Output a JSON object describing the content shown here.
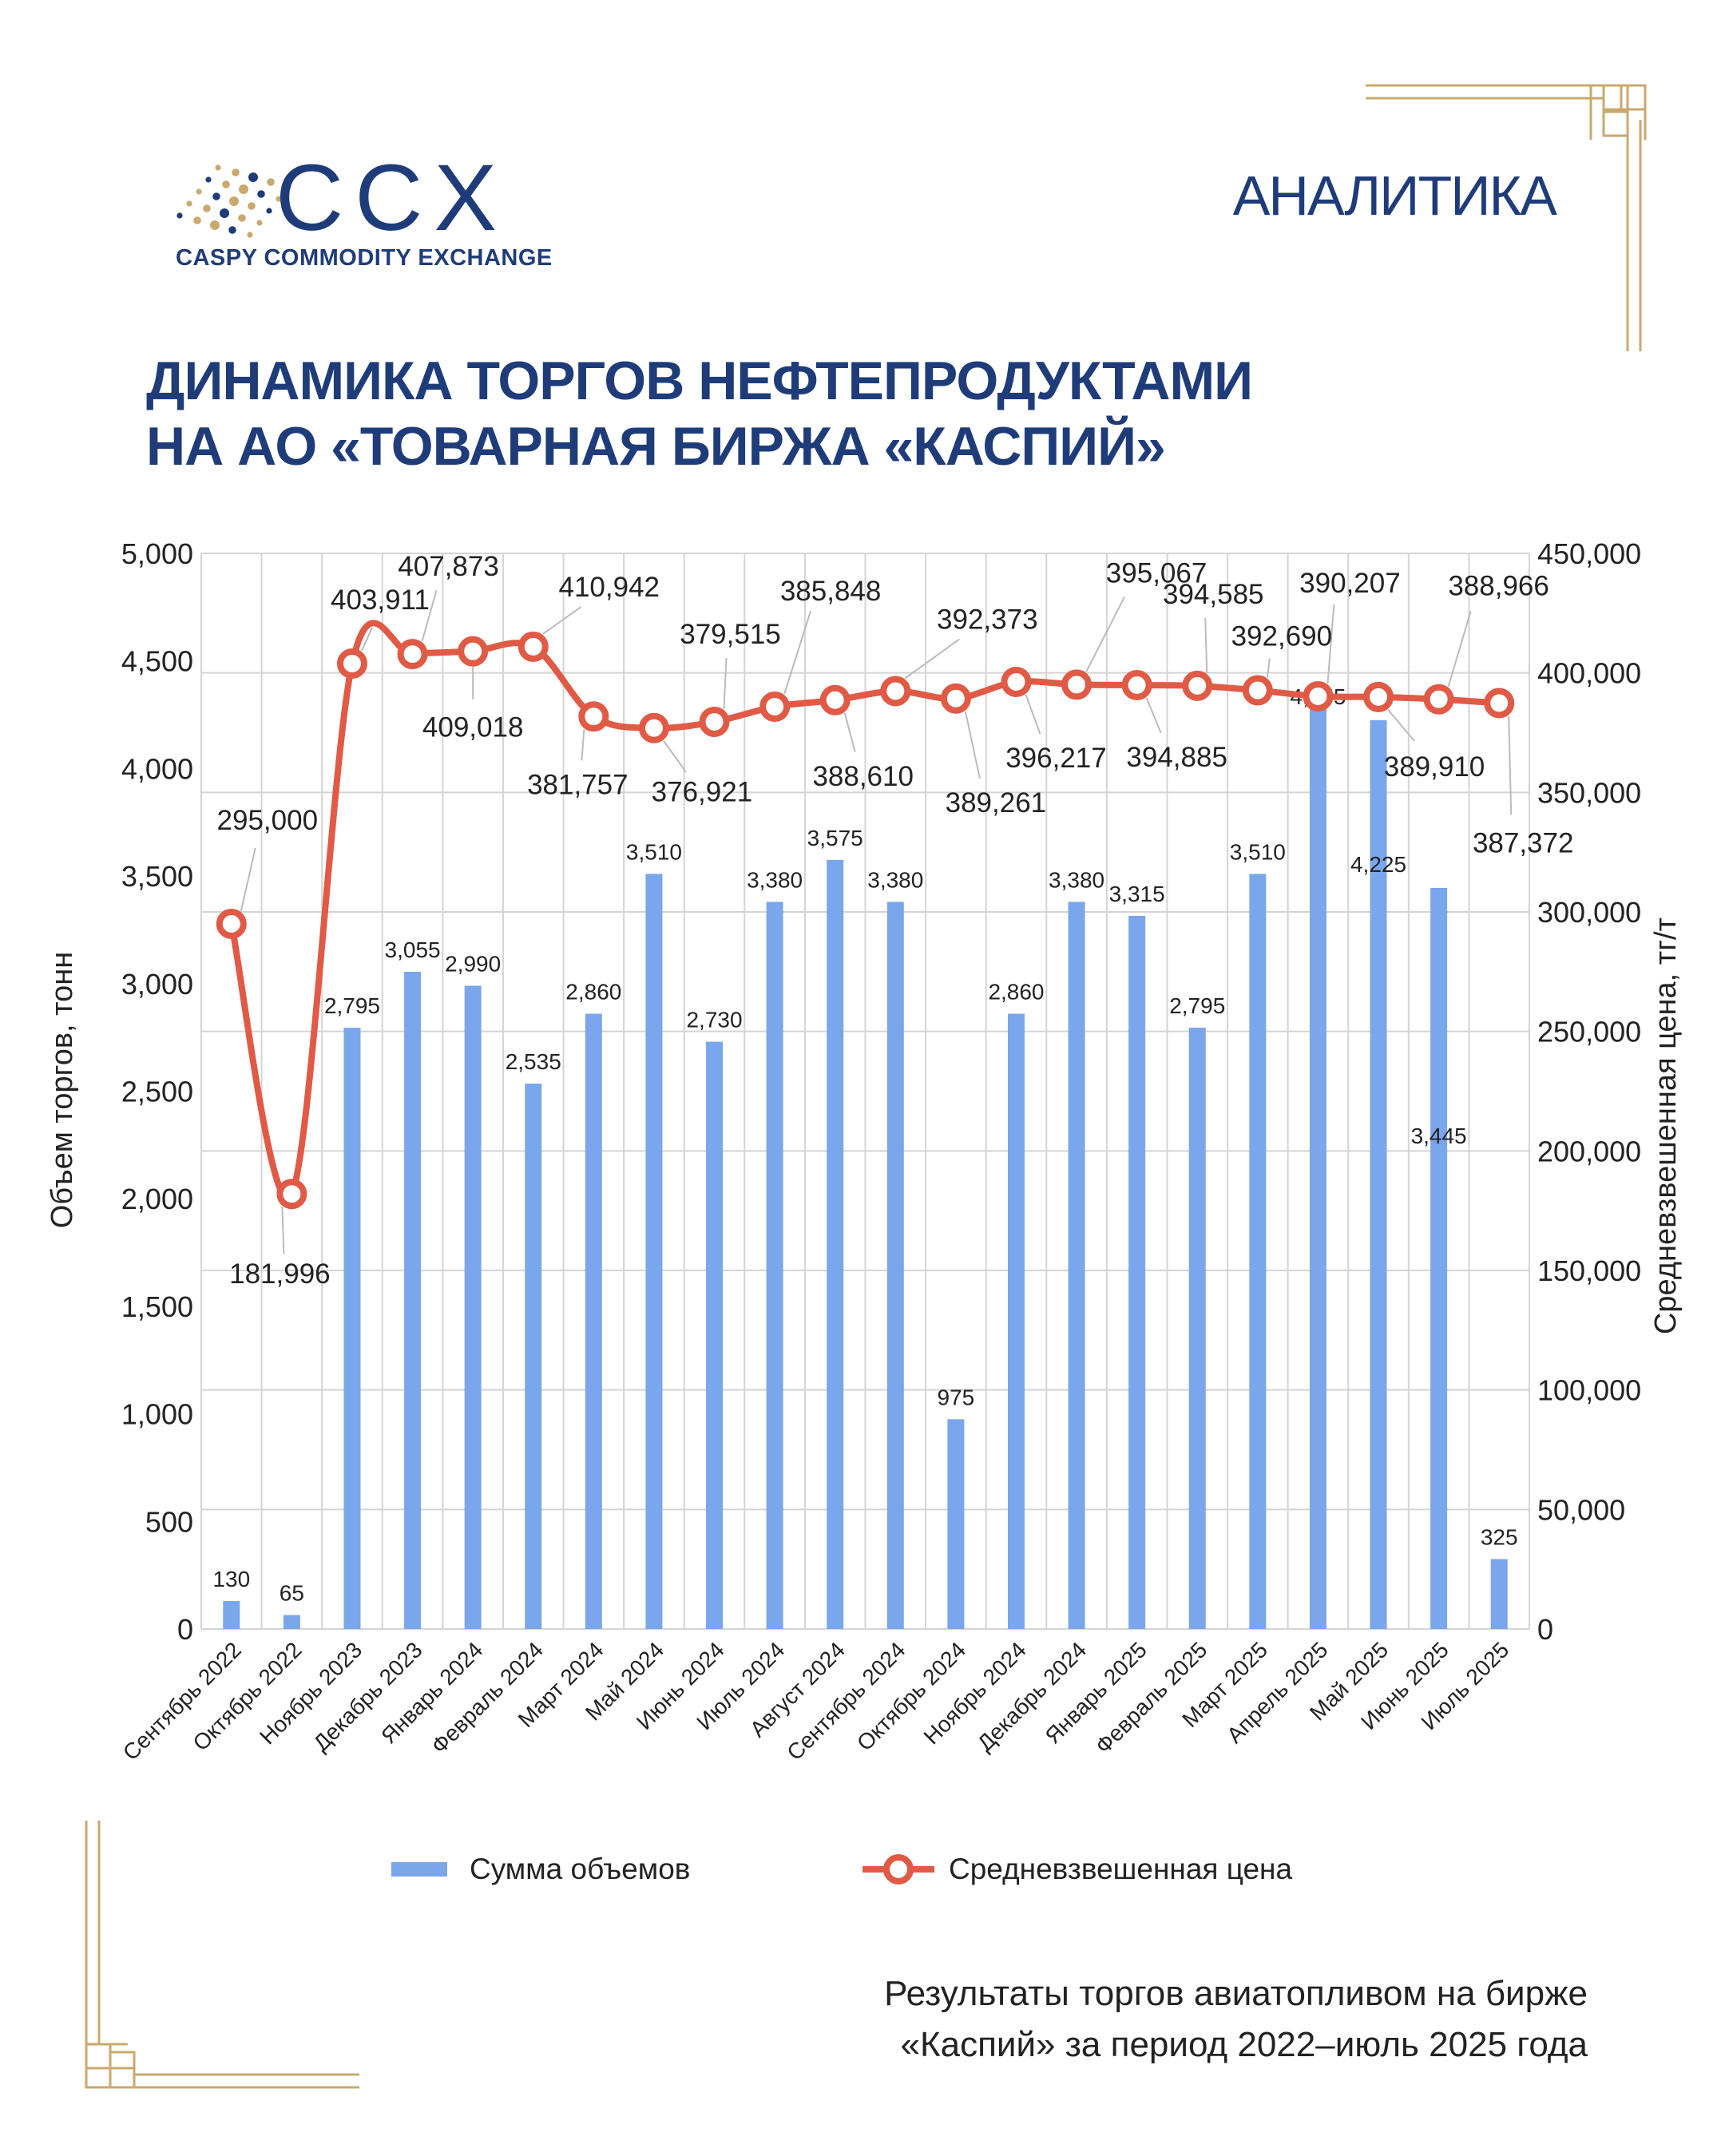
{
  "header": {
    "logo_text": "CCX",
    "logo_subtitle": "CASPY COMMODITY EXCHANGE",
    "section_label": "АНАЛИТИКА"
  },
  "title_lines": [
    "ДИНАМИКА ТОРГОВ НЕФТЕПРОДУКТАМИ",
    "НА АО «ТОВАРНАЯ БИРЖА «КАСПИЙ»"
  ],
  "colors": {
    "brand": "#1f3c7a",
    "gold": "#c9a96e",
    "bar": "#7aa6ec",
    "line": "#e05a45",
    "grid": "#d4d4d4"
  },
  "chart_data": {
    "type": "bar",
    "categories": [
      "Сентябрь 2022",
      "Октябрь 2022",
      "Ноябрь 2023",
      "Декабрь 2023",
      "Январь 2024",
      "Февраль 2024",
      "Март 2024",
      "Май 2024",
      "Июнь 2024",
      "Июль 2024",
      "Август 2024",
      "Сентябрь 2024",
      "Октябрь 2024",
      "Ноябрь 2024",
      "Декабрь 2024",
      "Январь 2025",
      "Февраль 2025",
      "Март 2025",
      "Апрель 2025",
      "Май 2025",
      "Июнь 2025",
      "Июль 2025"
    ],
    "series": [
      {
        "name": "Сумма объемов",
        "type": "bar",
        "axis": "left",
        "values": [
          130,
          65,
          2795,
          3055,
          2990,
          2535,
          2860,
          3510,
          2730,
          3380,
          3575,
          3380,
          975,
          2860,
          3380,
          3315,
          2795,
          3510,
          4355,
          4225,
          3445,
          325
        ],
        "labels": [
          "130",
          "65",
          "2,795",
          "3,055",
          "2,990",
          "2,535",
          "2,860",
          "3,510",
          "2,730",
          "3,380",
          "3,575",
          "3,380",
          "975",
          "2,860",
          "3,380",
          "3,315",
          "2,795",
          "3,510",
          "4,355",
          "4,225",
          "3,445",
          "325"
        ]
      },
      {
        "name": "Средневзвешенная цена",
        "type": "line",
        "axis": "right",
        "values": [
          295000,
          181996,
          403911,
          407873,
          409018,
          410942,
          381757,
          376921,
          379515,
          385848,
          388610,
          392373,
          389261,
          396217,
          395067,
          394885,
          394585,
          392690,
          390207,
          389910,
          388966,
          387372
        ],
        "labels": [
          "295,000",
          "181,996",
          "403,911",
          "407,873",
          "409,018",
          "410,942",
          "381,757",
          "376,921",
          "379,515",
          "385,848",
          "388,610",
          "392,373",
          "389,261",
          "396,217",
          "395,067",
          "394,885",
          "394,585",
          "392,690",
          "390,207",
          "389,910",
          "388,966",
          "387,372"
        ]
      }
    ],
    "ylabel": "Объем торгов, тонн",
    "y2label": "Средневзвешенная цена, тг/т",
    "ylim": [
      0,
      5000
    ],
    "y2lim": [
      0,
      450000
    ],
    "yticks": [
      "0",
      "500",
      "1,000",
      "1,500",
      "2,000",
      "2,500",
      "3,000",
      "3,500",
      "4,000",
      "4,500",
      "5,000"
    ],
    "y2ticks": [
      "0",
      "50,000",
      "100,000",
      "150,000",
      "200,000",
      "250,000",
      "300,000",
      "350,000",
      "400,000",
      "450,000"
    ],
    "grid": true,
    "legend_position": "bottom"
  },
  "footer_lines": [
    "Результаты торгов авиатопливом на бирже",
    "«Каспий» за период 2022–июль 2025 года"
  ]
}
